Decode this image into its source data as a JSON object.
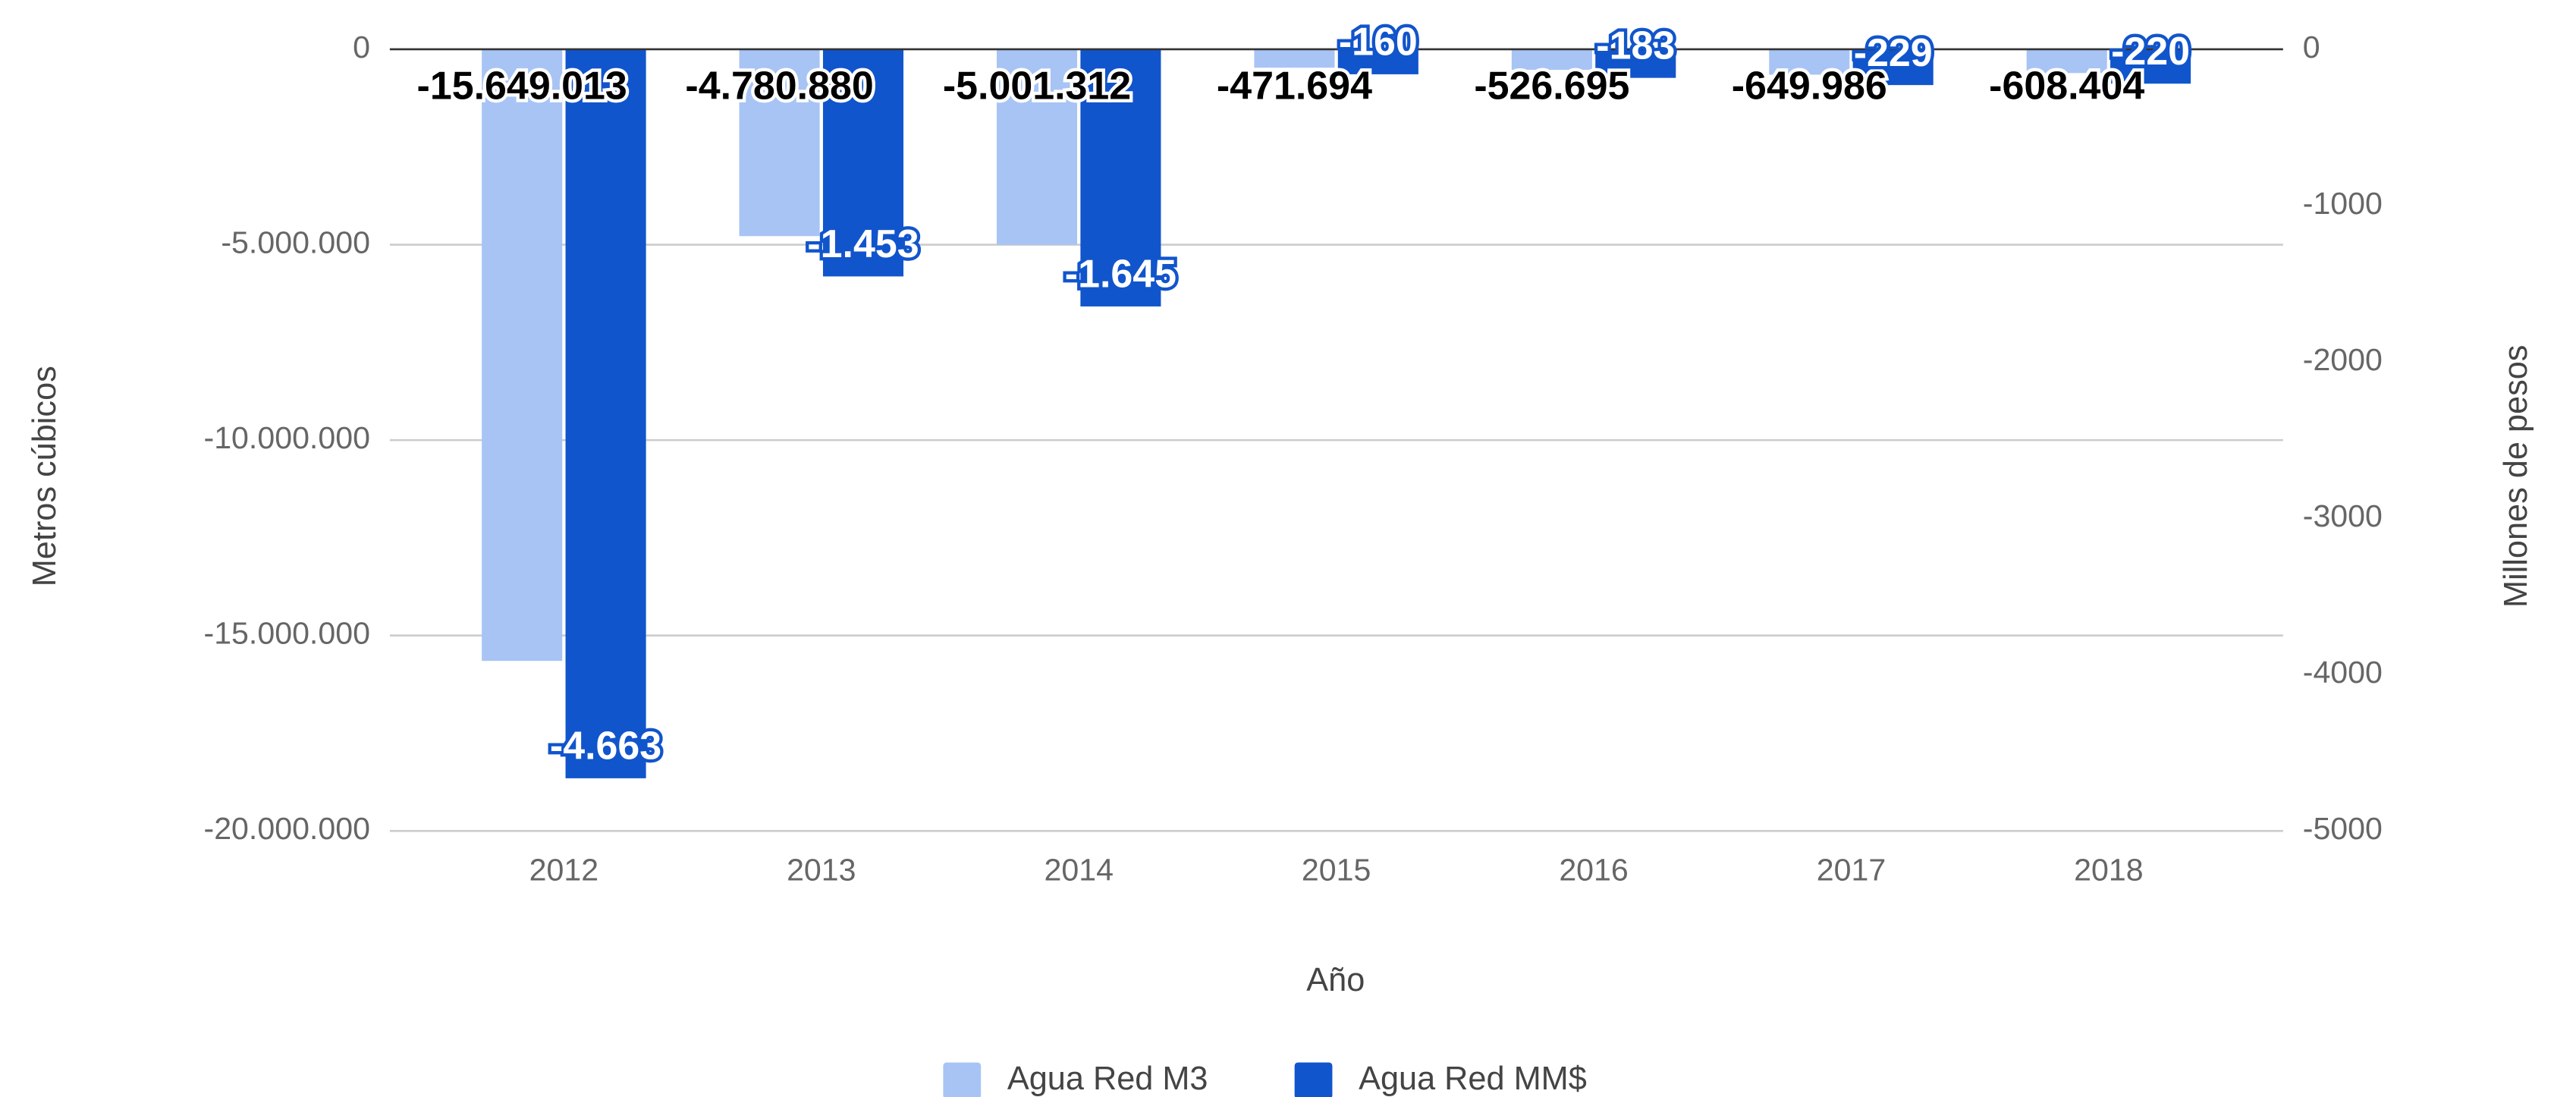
{
  "chart_data": {
    "type": "bar",
    "categories": [
      "2012",
      "2013",
      "2014",
      "2015",
      "2016",
      "2017",
      "2018"
    ],
    "series": [
      {
        "name": "Agua Red M3",
        "color": "#a8c4f5",
        "values": [
          -15649013,
          -4780880,
          -5001312,
          -471694,
          -526695,
          -649986,
          -608404
        ],
        "value_labels": [
          "-15.649.013",
          "-4.780.880",
          "-5.001.312",
          "-471.694",
          "-526.695",
          "-649.986",
          "-608.404"
        ]
      },
      {
        "name": "Agua Red MM$",
        "color": "#1155cc",
        "axis": "y2",
        "values": [
          -4663,
          -1453,
          -1645,
          -160,
          -183,
          -229,
          -220
        ],
        "value_labels": [
          "-4.663",
          "-1.453",
          "-1.645",
          "-160",
          "-183",
          "-229",
          "-220"
        ]
      }
    ],
    "ylabel": "Metros cúbicos",
    "y2label": "Millones de pesos",
    "xlabel": "Año",
    "ylim": [
      -20000000,
      0
    ],
    "yticks": [
      {
        "value": 0,
        "label": "0"
      },
      {
        "value": -5000000,
        "label": "-5.000.000"
      },
      {
        "value": -10000000,
        "label": "-10.000.000"
      },
      {
        "value": -15000000,
        "label": "-15.000.000"
      },
      {
        "value": -20000000,
        "label": "-20.000.000"
      }
    ],
    "y2lim": [
      -5000,
      0
    ],
    "y2ticks": [
      0,
      -1000,
      -2000,
      -3000,
      -4000,
      -5000
    ],
    "grid": true,
    "legend": "bottom"
  }
}
